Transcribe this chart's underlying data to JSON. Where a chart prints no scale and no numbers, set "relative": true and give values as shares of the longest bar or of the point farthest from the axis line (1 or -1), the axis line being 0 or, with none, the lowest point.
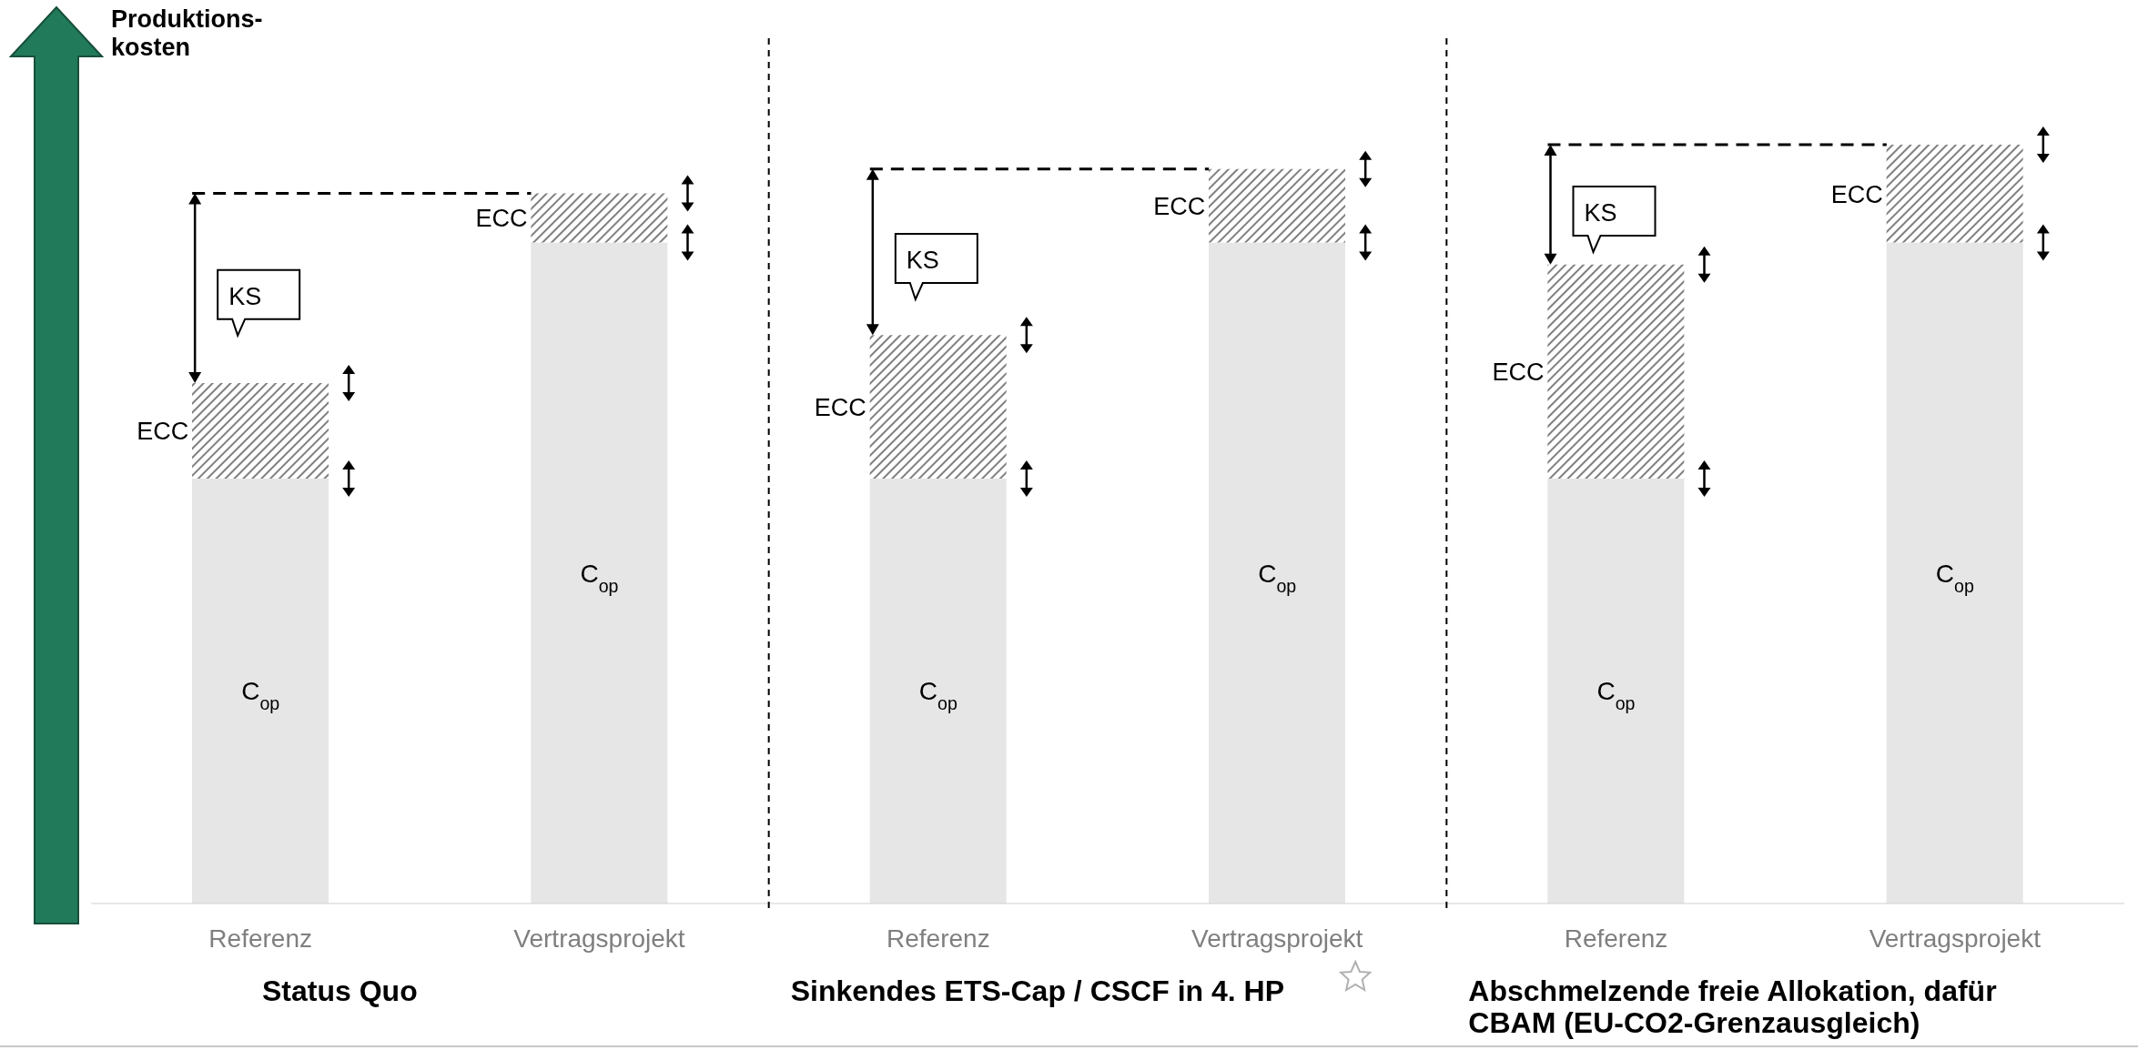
{
  "chart_data": {
    "type": "bar",
    "stacked": true,
    "relative": true,
    "ylabel": "Produktions-kosten",
    "categories": [
      "Referenz",
      "Vertragsprojekt",
      "Referenz",
      "Vertragsprojekt",
      "Referenz",
      "Vertragsprojekt"
    ],
    "series": [
      {
        "name": "C$_{op}$",
        "color": "#e6e6e6",
        "values": [
          0.56,
          0.871,
          0.56,
          0.871,
          0.56,
          0.871
        ]
      },
      {
        "name": "ECC",
        "color": "#7f7f7f",
        "values": [
          0.126,
          0.065,
          0.189,
          0.097,
          0.282,
          0.129
        ]
      }
    ],
    "annotations": [
      "Status Quo",
      "Sinkendes ETS-Cap / CSCF in 4. HP",
      "Abschmelzende freie Allokation, dafür CBAM (EU-CO2-Grenzausgleich)",
      "KS",
      "KS",
      "KS"
    ],
    "grid": false,
    "legend": false
  }
}
